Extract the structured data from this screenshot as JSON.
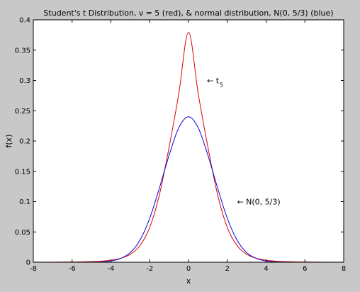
{
  "chart_data": {
    "type": "line",
    "title": "Student's t Distribution, ν = 5 (red), & normal distribution, N(0, 5/3) (blue)",
    "xlabel": "x",
    "ylabel": "f(x)",
    "xlim": [
      -8,
      8
    ],
    "ylim": [
      0,
      0.4
    ],
    "xticks": [
      -8,
      -6,
      -4,
      -2,
      0,
      2,
      4,
      6,
      8
    ],
    "xtick_labels": [
      "-8",
      "-6",
      "-4",
      "-2",
      "0",
      "2",
      "4",
      "6",
      "8"
    ],
    "yticks": [
      0,
      0.05,
      0.1,
      0.15,
      0.2,
      0.25,
      0.3,
      0.35,
      0.4
    ],
    "ytick_labels": [
      "0",
      "0.05",
      "0.1",
      "0.15",
      "0.2",
      "0.25",
      "0.3",
      "0.35",
      "0.4"
    ],
    "grid": false,
    "series": [
      {
        "color": "#e00000",
        "x": [
          -8,
          -7,
          -6,
          -5,
          -4.5,
          -4,
          -3.5,
          -3,
          -2.5,
          -2,
          -1.5,
          -1,
          -0.5,
          0,
          0.5,
          1,
          1.5,
          2,
          2.5,
          3,
          3.5,
          4,
          4.5,
          5,
          6,
          7,
          8
        ],
        "y": [
          0.0001,
          0.0002,
          0.0004,
          0.001,
          0.0018,
          0.0033,
          0.0064,
          0.0131,
          0.0277,
          0.0574,
          0.1114,
          0.1899,
          0.2783,
          0.3796,
          0.2783,
          0.1899,
          0.1114,
          0.0574,
          0.0277,
          0.0131,
          0.0064,
          0.0033,
          0.0018,
          0.001,
          0.0004,
          0.0002,
          0.0001
        ]
      },
      {
        "color": "#0000e0",
        "x": [
          -8,
          -7,
          -6,
          -5,
          -4.5,
          -4,
          -3.5,
          -3,
          -2.5,
          -2,
          -1.5,
          -1,
          -0.5,
          0,
          0.5,
          1,
          1.5,
          2,
          2.5,
          3,
          3.5,
          4,
          4.5,
          5,
          6,
          7,
          8
        ],
        "y": [
          0.0,
          0.0,
          0.0,
          0.0002,
          0.0005,
          0.002,
          0.0062,
          0.016,
          0.0366,
          0.0725,
          0.1225,
          0.1766,
          0.222,
          0.24,
          0.222,
          0.1766,
          0.1225,
          0.0725,
          0.0366,
          0.016,
          0.0062,
          0.002,
          0.0005,
          0.0002,
          0.0,
          0.0,
          0.0
        ]
      }
    ],
    "annotations": [
      {
        "label": "← t",
        "subscript": "5",
        "x": 0.95,
        "y": 0.3
      },
      {
        "label": "← N(0, 5/3)",
        "x": 2.5,
        "y": 0.1
      }
    ]
  }
}
